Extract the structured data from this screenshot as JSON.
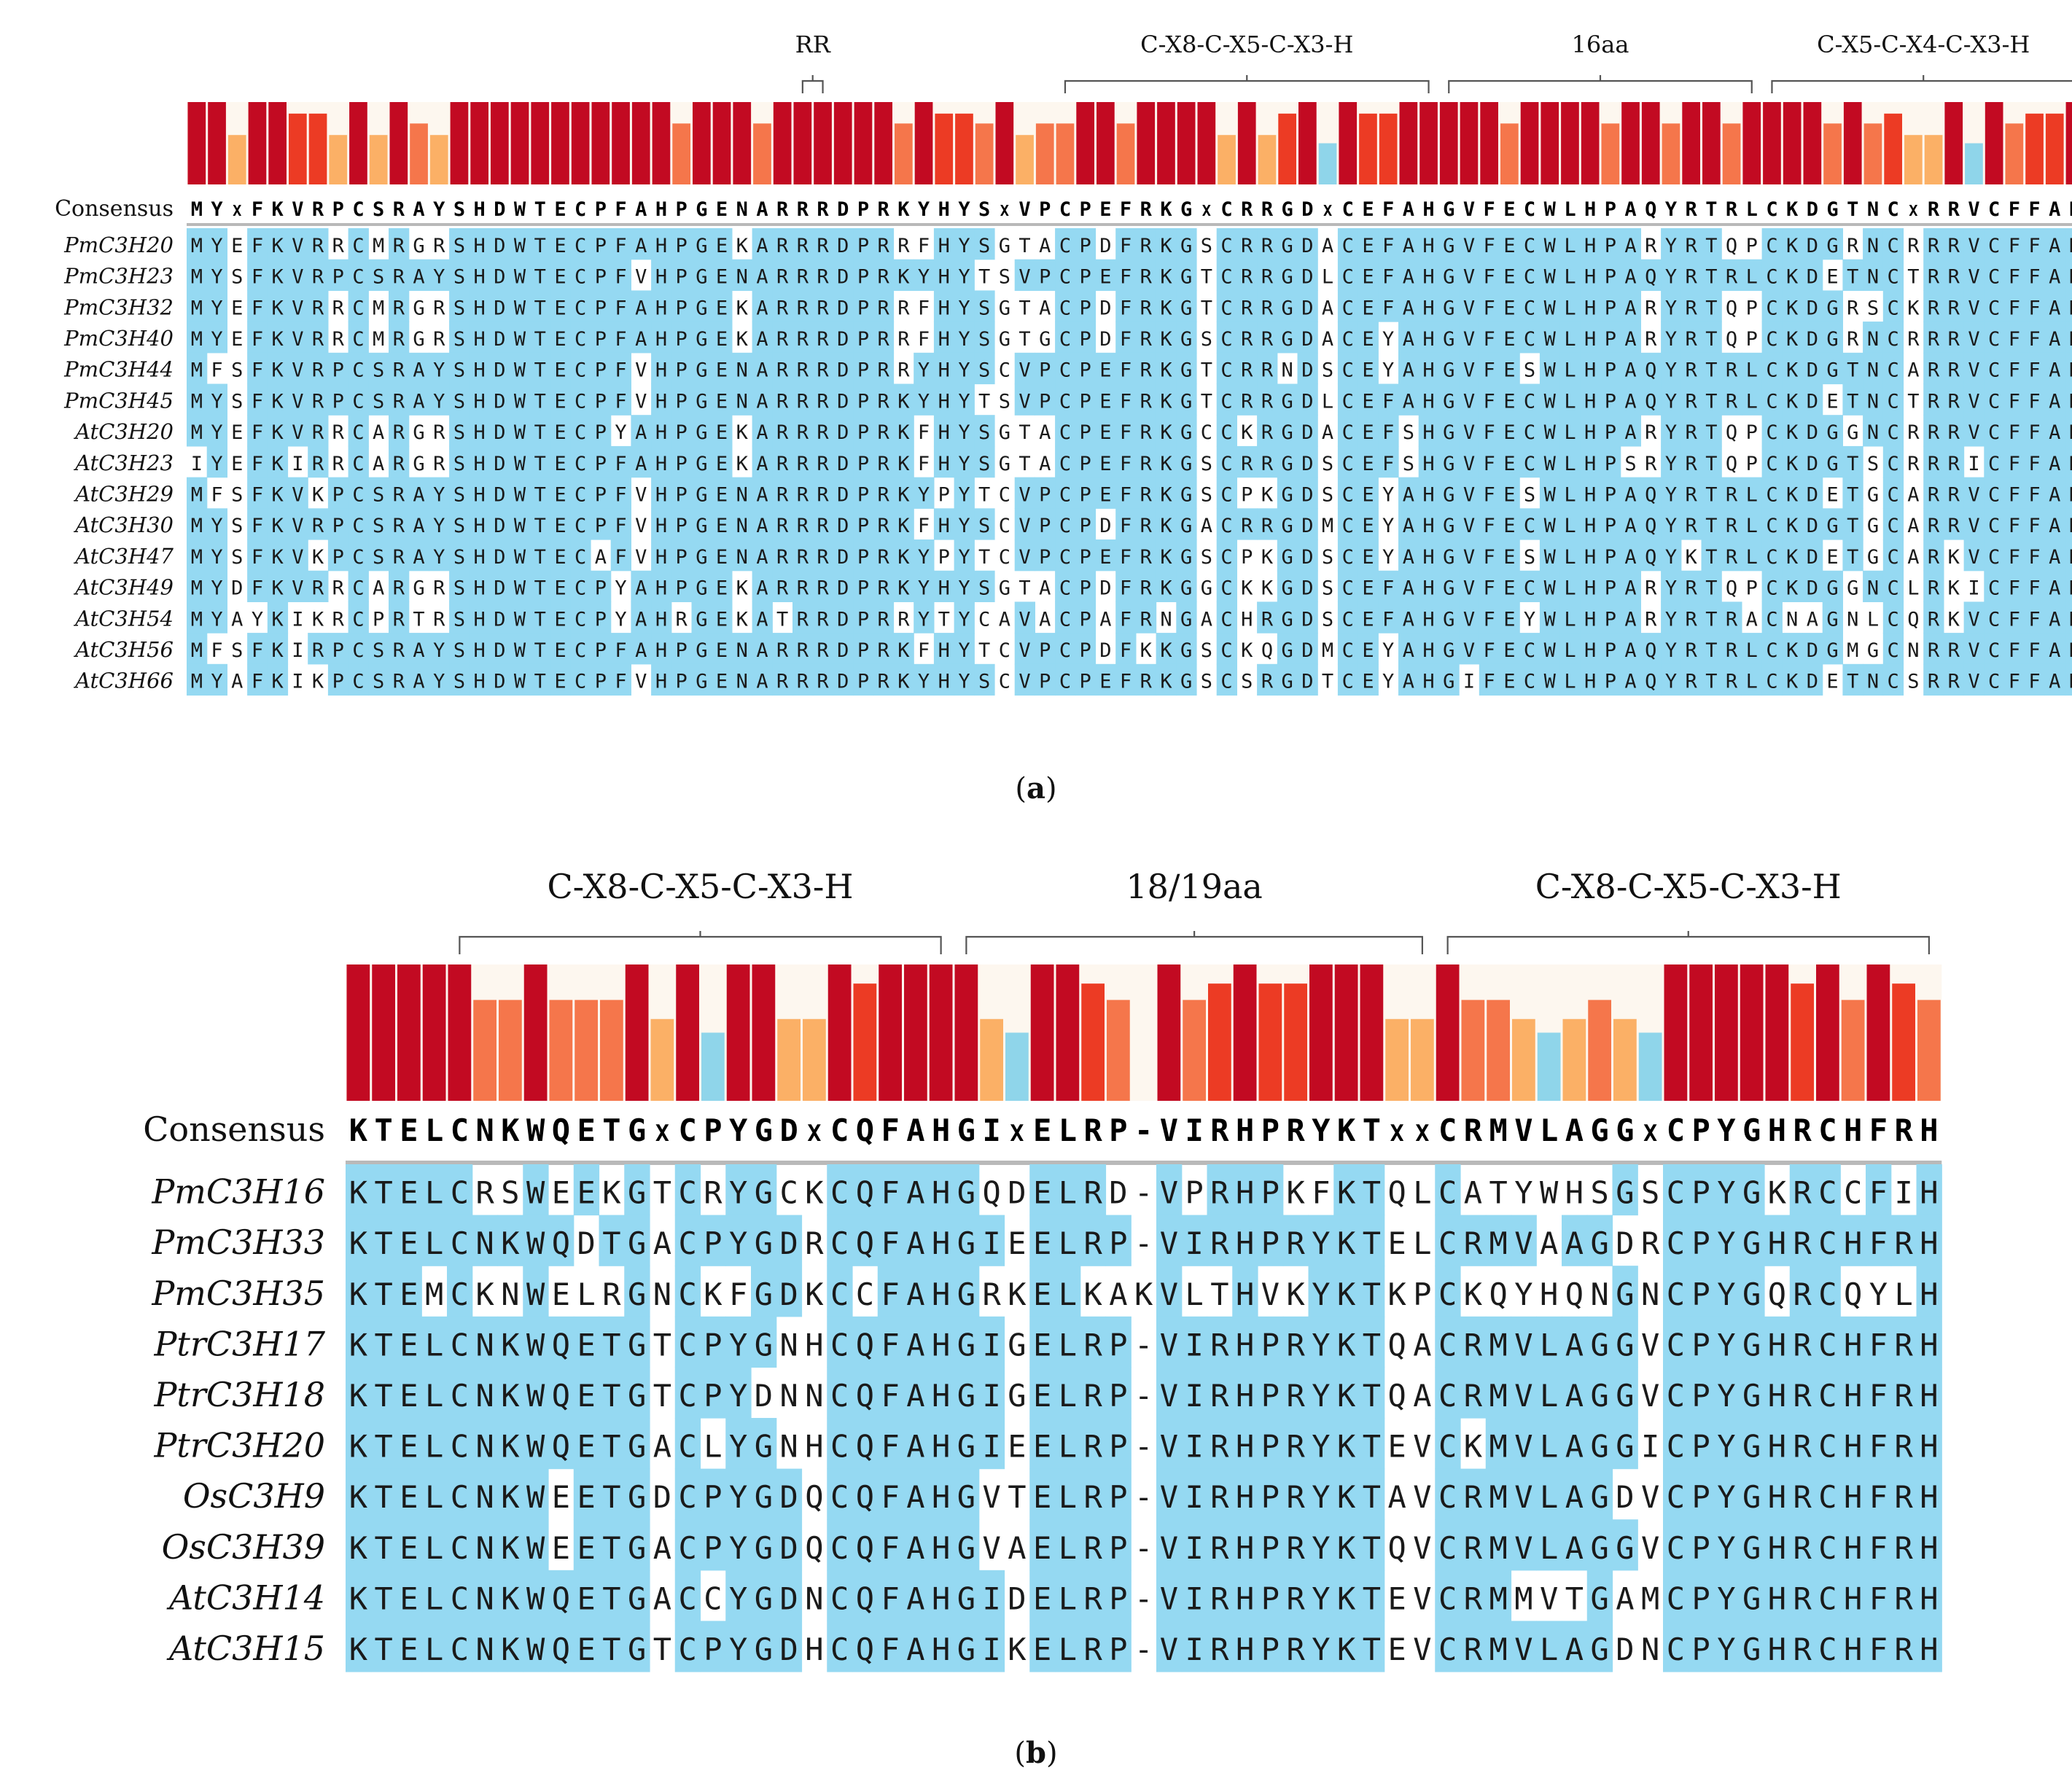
{
  "colors": {
    "identity_shade": "#95d9f2",
    "strip_background": "#fdf7ef",
    "bar_level_5": "#c20a22",
    "bar_level_4": "#ec3b24",
    "bar_level_3": "#f5764b",
    "bar_level_2": "#fbb066",
    "bar_level_1": "#8fd5ea",
    "bracket": "#555555",
    "separator": "#b9b9b9"
  },
  "panels": [
    {
      "id": "a",
      "caption_letter": "a",
      "consensus_label": "Consensus",
      "consensus": "MYXFKVRPCSRAYSHDWTECPFAHPGENARRRDPRKYHYSXVPCPEFRKGXCRRGDXCEFAHGVFECWLHPAQYRTRLCKDGTNCXRRVCFFAH",
      "conservation_levels": [
        5,
        5,
        2,
        5,
        5,
        4,
        4,
        2,
        5,
        2,
        5,
        3,
        2,
        5,
        5,
        5,
        5,
        5,
        5,
        5,
        5,
        5,
        5,
        5,
        3,
        5,
        5,
        5,
        3,
        5,
        5,
        5,
        5,
        5,
        5,
        3,
        5,
        4,
        4,
        3,
        5,
        2,
        3,
        3,
        5,
        5,
        3,
        5,
        5,
        5,
        5,
        2,
        5,
        2,
        4,
        5,
        1,
        5,
        4,
        4,
        5,
        5,
        5,
        5,
        5,
        3,
        5,
        5,
        5,
        5,
        3,
        5,
        5,
        3,
        5,
        5,
        3,
        5,
        5,
        5,
        5,
        3,
        5,
        3,
        4,
        2,
        2,
        5,
        1,
        5,
        3,
        4,
        4,
        5,
        5,
        5,
        5
      ],
      "sequences": [
        {
          "name": "PmC3H20",
          "seq": "MYEFKVRRCMRGRSHDWTECPFAHPGEKARRRDPRRFHYSGTACPDFRKGSCRRGDACEFAHGVFECWLHPARYRTQPCKDGRNCRRRVCFFAH"
        },
        {
          "name": "PmC3H23",
          "seq": "MYSFKVRPCSRAYSHDWTECPFVHPGENARRRDPRKYHYTSVPCPEFRKGTCRRGDLCEFAHGVFECWLHPAQYRTRLCKDETNCTRRVCFFAH"
        },
        {
          "name": "PmC3H32",
          "seq": "MYEFKVRRCMRGRSHDWTECPFAHPGEKARRRDPRRFHYSGTACPDFRKGTCRRGDACEFAHGVFECWLHPARYRTQPCKDGRSCKRRVCFFAH"
        },
        {
          "name": "PmC3H40",
          "seq": "MYEFKVRRCMRGRSHDWTECPFAHPGEKARRRDPRRFHYSGTGCPDFRKGSCRRGDACEYAHGVFECWLHPARYRTQPCKDGRNCRRRVCFFAH"
        },
        {
          "name": "PmC3H44",
          "seq": "MFSFKVRPCSRAYSHDWTECPFVHPGENARRRDPRRYHYSCVPCPEFRKGTCRRNDSCEYAHGVFESWLHPAQYRTRLCKDGTNCARRVCFFAH"
        },
        {
          "name": "PmC3H45",
          "seq": "MYSFKVRPCSRAYSHDWTECPFVHPGENARRRDPRKYHYTSVPCPEFRKGTCRRGDLCEFAHGVFECWLHPAQYRTRLCKDETNCTRRVCFFAH"
        },
        {
          "name": "AtC3H20",
          "seq": "MYEFKVRRCARGRSHDWTECPYAHPGEKARRRDPRKFHYSGTACPEFRKGCCKRGDACEFSHGVFECWLHPARYRTQPCKDGGNCRRRVCFFAH"
        },
        {
          "name": "AtC3H23",
          "seq": "IYEFKIRRCARGRSHDWTECPFAHPGEKARRRDPRKFHYSGTACPEFRKGSCRRGDSCEFSHGVFECWLHPSRYRTQPCKDGTSCRRRICFFAH"
        },
        {
          "name": "AtC3H29",
          "seq": "MFSFKVKPCSRAYSHDWTECPFVHPGENARRRDPRKYPYTCVPCPEFRKGSCPKGDSCEYAHGVFESWLHPAQYRTRLCKDETGCARRVCFFAH"
        },
        {
          "name": "AtC3H30",
          "seq": "MYSFKVRPCSRAYSHDWTECPFVHPGENARRRDPRKFHYSCVPCPDFRKGACRRGDMCEYAHGVFECWLHPAQYRTRLCKDGTGCARRVCFFAH"
        },
        {
          "name": "AtC3H47",
          "seq": "MYSFKVKPCSRAYSHDWTECAFVHPGENARRRDPRKYPYTCVPCPEFRKGSCPKGDSCEYAHGVFESWLHPAQYKTRLCKDETGCARKVCFFAH"
        },
        {
          "name": "AtC3H49",
          "seq": "MYDFKVRRCARGRSHDWTECPYAHPGEKARRRDPRKYHYSGTACPDFRKGGCKKGDSCEFAHGVFECWLHPARYRTQPCKDGGNCLRKICFFAH"
        },
        {
          "name": "AtC3H54",
          "seq": "MYAYKIKRCPRTRSHDWTECPYAHRGEKATRRDPRRYTYCAVACPAFRNGACHRGDSCEFAHGVFEYWLHPARYRTRACNAGNLCQRKVCFFAH"
        },
        {
          "name": "AtC3H56",
          "seq": "MFSFKIRPCSRAYSHDWTECPFAHPGENARRRDPRKFHYTCVPCPDFKKGSCKQGDMCEYAHGVFECWLHPAQYRTRLCKDGMGCNRRVCFFAH"
        },
        {
          "name": "AtC3H66",
          "seq": "MYAFKIKPCSRAYSHDWTECPFVHPGENARRRDPRKYHYSCVPCPEFRKGSCSRGDTCEYAHGIFECWLHPAQYRTRLCKDETNCSRRVCFFAH"
        }
      ],
      "motifs": [
        {
          "label": "RR",
          "start": 30,
          "end": 31
        },
        {
          "label": "C-X8-C-X5-C-X3-H",
          "start": 43,
          "end": 61
        },
        {
          "label": "16aa",
          "start": 62,
          "end": 77
        },
        {
          "label": "C-X5-C-X4-C-X3-H",
          "start": 78,
          "end": 93
        }
      ]
    },
    {
      "id": "b",
      "caption_letter": "b",
      "consensus_label": "Consensus",
      "consensus": "KTELCNKWQETGXCPYGDXCQFAHGIXELRP-VIRHPRYKTXXCRMVLAGGXCPYGHRCHFRH",
      "conservation_levels": [
        5,
        5,
        5,
        5,
        5,
        3,
        3,
        5,
        3,
        3,
        3,
        5,
        2,
        5,
        1,
        5,
        5,
        2,
        2,
        5,
        4,
        5,
        5,
        5,
        5,
        2,
        1,
        5,
        5,
        4,
        3,
        0,
        5,
        3,
        4,
        5,
        4,
        4,
        5,
        5,
        5,
        2,
        2,
        5,
        3,
        3,
        2,
        1,
        2,
        3,
        2,
        1,
        5,
        5,
        5,
        5,
        5,
        4,
        5,
        3,
        5,
        4,
        3
      ],
      "sequences": [
        {
          "name": "PmC3H16",
          "seq": "KTELCRSWEEKGTCRYGCKCQFAHGQDELRD-VPRHPKFKTQLCATYWHSGSCPYGKRCCFIH"
        },
        {
          "name": "PmC3H33",
          "seq": "KTELCNKWQDTGACPYGDRCQFAHGIEELRP-VIRHPRYKTELCRMVAAGDRCPYGHRCHFRH"
        },
        {
          "name": "PmC3H35",
          "seq": "KTEMCKNWELRGNCKFGDKCCFAHGRKELKAKVLTHVKYKTKPCKQYHQNGNCPYGQRCQYLH"
        },
        {
          "name": "PtrC3H17",
          "seq": "KTELCNKWQETGTCPYGNHCQFAHGIGELRP-VIRHPRYKTQACRMVLAGGVCPYGHRCHFRH"
        },
        {
          "name": "PtrC3H18",
          "seq": "KTELCNKWQETGTCPYDNNCQFAHGIGELRP-VIRHPRYKTQACRMVLAGGVCPYGHRCHFRH"
        },
        {
          "name": "PtrC3H20",
          "seq": "KTELCNKWQETGACLYGNHCQFAHGIEELRP-VIRHPRYKTEVCKMVLAGGICPYGHRCHFRH"
        },
        {
          "name": "OsC3H9",
          "seq": "KTELCNKWEETGDCPYGDQCQFAHGVTELRP-VIRHPRYKTAVCRMVLAGDVCPYGHRCHFRH"
        },
        {
          "name": "OsC3H39",
          "seq": "KTELCNKWEETGACPYGDQCQFAHGVAELRP-VIRHPRYKTQVCRMVLAGGVCPYGHRCHFRH"
        },
        {
          "name": "AtC3H14",
          "seq": "KTELCNKWQETGACCYGDNCQFAHGIDELRP-VIRHPRYKTEVCRMMVTGAMCPYGHRCHFRH"
        },
        {
          "name": "AtC3H15",
          "seq": "KTELCNKWQETGTCPYGDHCQFAHGIKELRP-VIRHPRYKTEVCRMVLAGDNCPYGHRCHFRH"
        }
      ],
      "motifs": [
        {
          "label": "C-X8-C-X5-C-X3-H",
          "start": 4,
          "end": 23
        },
        {
          "label": "18/19aa",
          "start": 24,
          "end": 42
        },
        {
          "label": "C-X8-C-X5-C-X3-H",
          "start": 43,
          "end": 62
        }
      ]
    }
  ]
}
